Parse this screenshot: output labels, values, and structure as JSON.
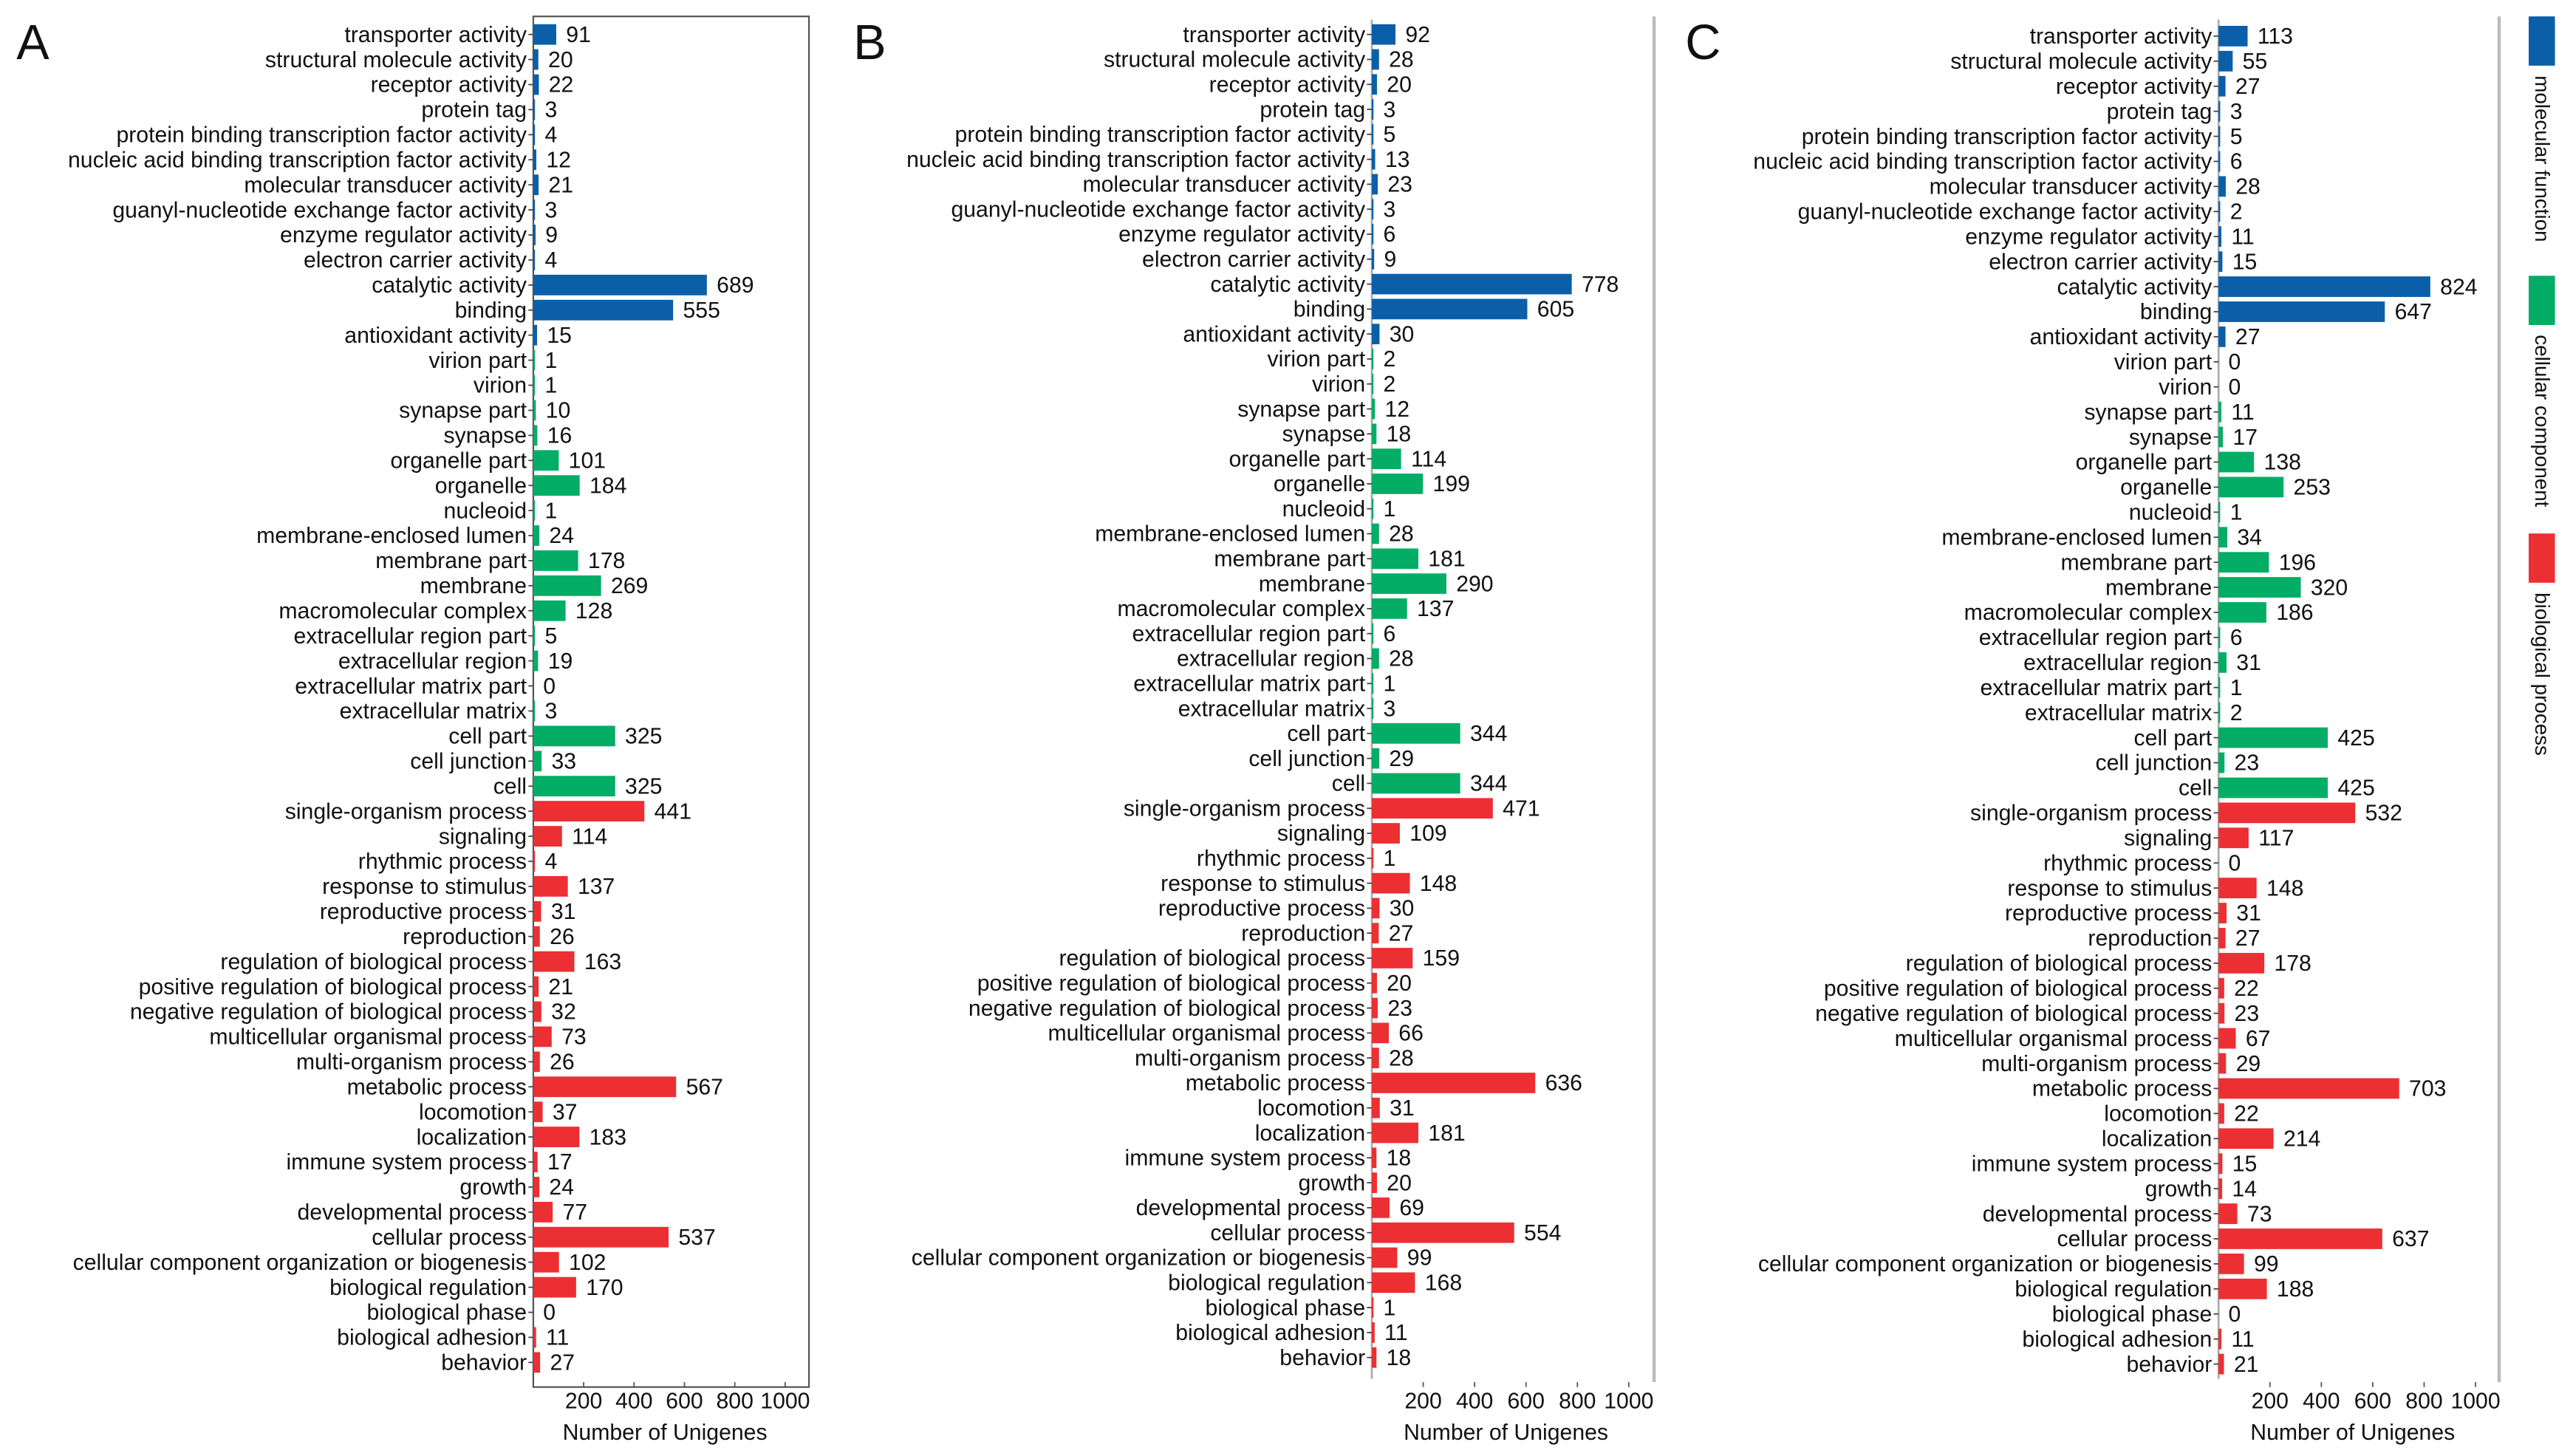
{
  "chart_data": {
    "type": "bar",
    "orientation": "horizontal",
    "xlabel": "Number of Unigenes",
    "xlim": [
      0,
      1000
    ],
    "xticks": [
      200,
      400,
      600,
      800,
      1000
    ],
    "legend": {
      "placement": "right",
      "entries": [
        {
          "name": "molecular function",
          "color": "#0a5fa8"
        },
        {
          "name": "cellular component",
          "color": "#03ad65"
        },
        {
          "name": "biological process",
          "color": "#ec2f33"
        }
      ]
    },
    "groups": [
      "molecular function",
      "molecular function",
      "molecular function",
      "molecular function",
      "molecular function",
      "molecular function",
      "molecular function",
      "molecular function",
      "molecular function",
      "molecular function",
      "molecular function",
      "molecular function",
      "molecular function",
      "cellular component",
      "cellular component",
      "cellular component",
      "cellular component",
      "cellular component",
      "cellular component",
      "cellular component",
      "cellular component",
      "cellular component",
      "cellular component",
      "cellular component",
      "cellular component",
      "cellular component",
      "cellular component",
      "cellular component",
      "cellular component",
      "cellular component",
      "cellular component",
      "biological process",
      "biological process",
      "biological process",
      "biological process",
      "biological process",
      "biological process",
      "biological process",
      "biological process",
      "biological process",
      "biological process",
      "biological process",
      "biological process",
      "biological process",
      "biological process",
      "biological process",
      "biological process",
      "biological process",
      "biological process",
      "biological process",
      "biological process",
      "biological process",
      "biological process",
      "biological process"
    ],
    "categories": [
      "transporter activity",
      "structural molecule activity",
      "receptor activity",
      "protein tag",
      "protein binding transcription factor activity",
      "nucleic acid binding transcription factor activity",
      "molecular transducer activity",
      "guanyl-nucleotide exchange factor activity",
      "enzyme regulator activity",
      "electron carrier activity",
      "catalytic activity",
      "binding",
      "antioxidant activity",
      "virion part",
      "virion",
      "synapse part",
      "synapse",
      "organelle part",
      "organelle",
      "nucleoid",
      "membrane-enclosed lumen",
      "membrane part",
      "membrane",
      "macromolecular complex",
      "extracellular region part",
      "extracellular region",
      "extracellular matrix part",
      "extracellular matrix",
      "cell part",
      "cell junction",
      "cell",
      "single-organism process",
      "signaling",
      "rhythmic process",
      "response to stimulus",
      "reproductive process",
      "reproduction",
      "regulation of biological process",
      "positive regulation of biological process",
      "negative regulation of biological process",
      "multicellular organismal process",
      "multi-organism process",
      "metabolic process",
      "locomotion",
      "localization",
      "immune system process",
      "growth",
      "developmental process",
      "cellular process",
      "cellular component organization or biogenesis",
      "biological regulation",
      "biological phase",
      "biological adhesion",
      "behavior"
    ],
    "panels": [
      {
        "label": "A",
        "values": [
          91,
          20,
          22,
          3,
          4,
          12,
          21,
          3,
          9,
          4,
          689,
          555,
          15,
          1,
          1,
          10,
          16,
          101,
          184,
          1,
          24,
          178,
          269,
          128,
          5,
          19,
          0,
          3,
          325,
          33,
          325,
          441,
          114,
          4,
          137,
          31,
          26,
          163,
          21,
          32,
          73,
          26,
          567,
          37,
          183,
          17,
          24,
          77,
          537,
          102,
          170,
          0,
          11,
          27
        ]
      },
      {
        "label": "B",
        "values": [
          92,
          28,
          20,
          3,
          5,
          13,
          23,
          3,
          6,
          9,
          778,
          605,
          30,
          2,
          2,
          12,
          18,
          114,
          199,
          1,
          28,
          181,
          290,
          137,
          6,
          28,
          1,
          3,
          344,
          29,
          344,
          471,
          109,
          1,
          148,
          30,
          27,
          159,
          20,
          23,
          66,
          28,
          636,
          31,
          181,
          18,
          20,
          69,
          554,
          99,
          168,
          1,
          11,
          18
        ]
      },
      {
        "label": "C",
        "values": [
          113,
          55,
          27,
          3,
          5,
          6,
          28,
          2,
          11,
          15,
          824,
          647,
          27,
          0,
          0,
          11,
          17,
          138,
          253,
          1,
          34,
          196,
          320,
          186,
          6,
          31,
          1,
          2,
          425,
          23,
          425,
          532,
          117,
          0,
          148,
          31,
          27,
          178,
          22,
          23,
          67,
          29,
          703,
          22,
          214,
          15,
          14,
          73,
          637,
          99,
          188,
          0,
          11,
          21
        ]
      }
    ]
  }
}
